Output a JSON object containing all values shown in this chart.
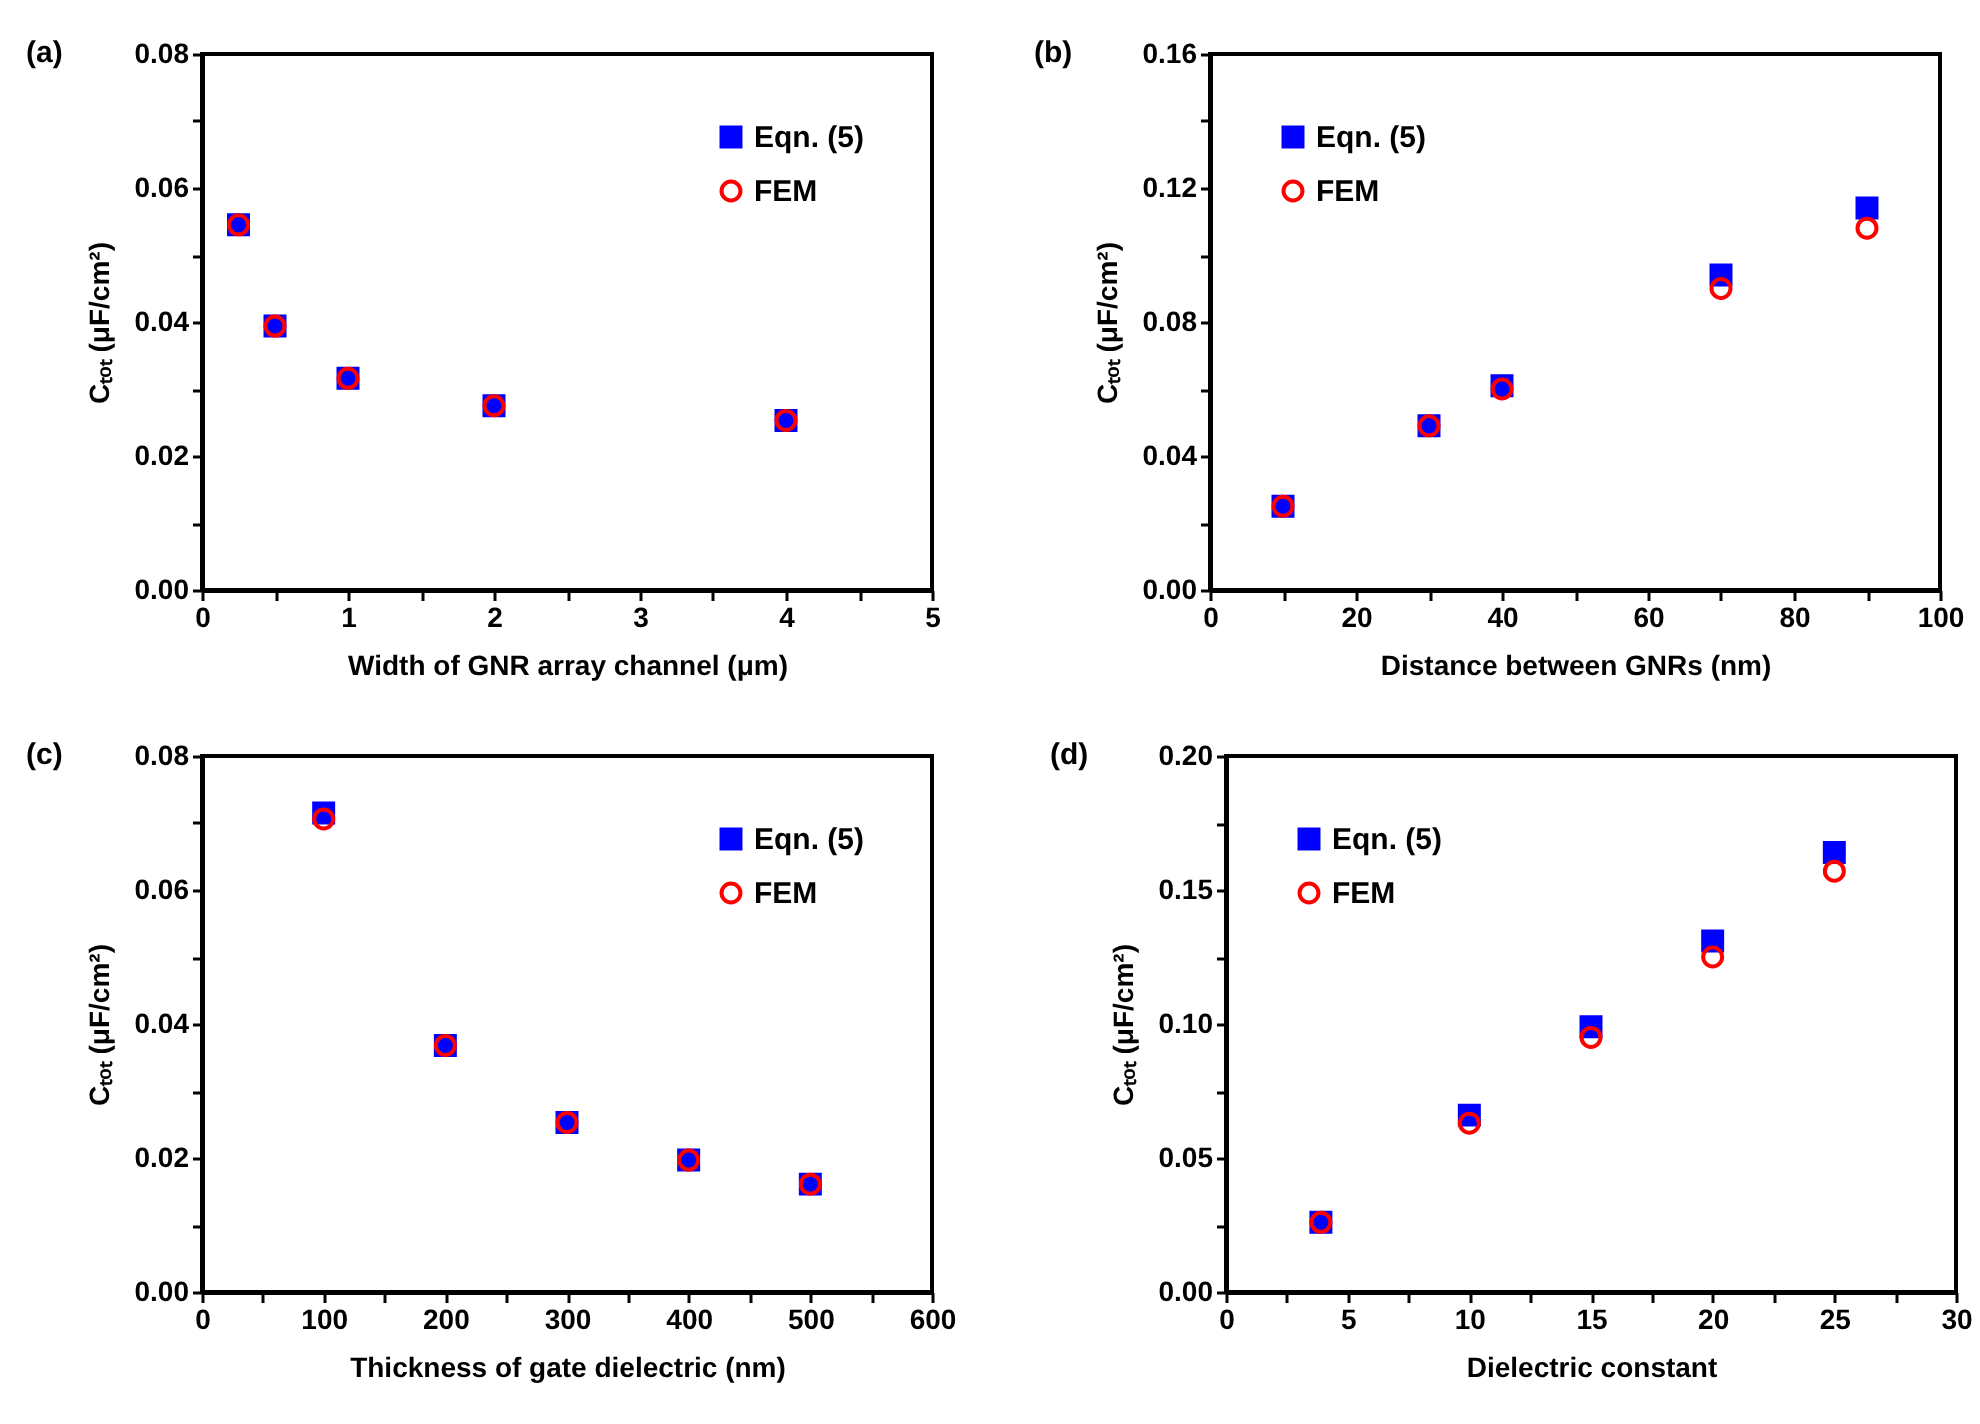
{
  "chart_data": [
    {
      "type": "scatter",
      "title": "(a)",
      "xlabel": "Width of GNR array channel (μm)",
      "ylabel": "Cₜₒₜ (μF/cm²)",
      "x": [
        0.25,
        0.5,
        1,
        2,
        4
      ],
      "xlim": [
        0,
        5
      ],
      "ylim": [
        0,
        0.08
      ],
      "xticks": [
        0,
        {
          "value": 0.5,
          "label": null
        },
        1,
        {
          "value": 1.5,
          "label": null
        },
        2,
        {
          "value": 2.5,
          "label": null
        },
        3,
        {
          "value": 3.5,
          "label": null
        },
        4,
        {
          "value": 4.5,
          "label": null
        },
        5
      ],
      "yticks": [
        {
          "value": 0,
          "label": "0.00"
        },
        {
          "value": 0.01,
          "label": null
        },
        {
          "value": 0.02,
          "label": "0.02"
        },
        {
          "value": 0.03,
          "label": null
        },
        {
          "value": 0.04,
          "label": "0.04"
        },
        {
          "value": 0.05,
          "label": null
        },
        {
          "value": 0.06,
          "label": "0.06"
        },
        {
          "value": 0.07,
          "label": null
        },
        {
          "value": 0.08,
          "label": "0.08"
        }
      ],
      "legend": "top right",
      "series": [
        {
          "name": "Eqn. (5)",
          "color": "#0000ff",
          "marker": "square",
          "values": [
            0.0545,
            0.0394,
            0.0316,
            0.0275,
            0.0253
          ]
        },
        {
          "name": "FEM",
          "color": "#ff0000",
          "marker": "circle",
          "values": [
            0.0545,
            0.0394,
            0.0316,
            0.0275,
            0.0253
          ]
        }
      ]
    },
    {
      "type": "scatter",
      "title": "(b)",
      "xlabel": "Distance between GNRs (nm)",
      "ylabel": "Cₜₒₜ (μF/cm²)",
      "x": [
        10,
        30,
        40,
        70,
        90
      ],
      "xlim": [
        0,
        100
      ],
      "ylim": [
        0,
        0.16
      ],
      "xticks": [
        0,
        {
          "value": 10,
          "label": null
        },
        20,
        {
          "value": 30,
          "label": null
        },
        40,
        {
          "value": 50,
          "label": null
        },
        60,
        {
          "value": 70,
          "label": null
        },
        80,
        {
          "value": 90,
          "label": null
        },
        100
      ],
      "yticks": [
        {
          "value": 0,
          "label": "0.00"
        },
        {
          "value": 0.02,
          "label": null
        },
        {
          "value": 0.04,
          "label": "0.04"
        },
        {
          "value": 0.06,
          "label": null
        },
        {
          "value": 0.08,
          "label": "0.08"
        },
        {
          "value": 0.1,
          "label": null
        },
        {
          "value": 0.12,
          "label": "0.12"
        },
        {
          "value": 0.14,
          "label": null
        },
        {
          "value": 0.16,
          "label": "0.16"
        }
      ],
      "legend": "top left",
      "series": [
        {
          "name": "Eqn. (5)",
          "color": "#0000ff",
          "marker": "square",
          "values": [
            0.025,
            0.049,
            0.061,
            0.094,
            0.114
          ]
        },
        {
          "name": "FEM",
          "color": "#ff0000",
          "marker": "circle",
          "values": [
            0.025,
            0.049,
            0.06,
            0.09,
            0.108
          ]
        }
      ]
    },
    {
      "type": "scatter",
      "title": "(c)",
      "xlabel": "Thickness of gate dielectric (nm)",
      "ylabel": "Cₜₒₜ (μF/cm²)",
      "x": [
        100,
        200,
        300,
        400,
        500
      ],
      "xlim": [
        0,
        600
      ],
      "ylim": [
        0,
        0.08
      ],
      "xticks": [
        0,
        {
          "value": 50,
          "label": null
        },
        100,
        {
          "value": 150,
          "label": null
        },
        200,
        {
          "value": 250,
          "label": null
        },
        300,
        {
          "value": 350,
          "label": null
        },
        400,
        {
          "value": 450,
          "label": null
        },
        500,
        {
          "value": 550,
          "label": null
        },
        600
      ],
      "yticks": [
        {
          "value": 0,
          "label": "0.00"
        },
        {
          "value": 0.01,
          "label": null
        },
        {
          "value": 0.02,
          "label": "0.02"
        },
        {
          "value": 0.03,
          "label": null
        },
        {
          "value": 0.04,
          "label": "0.04"
        },
        {
          "value": 0.05,
          "label": null
        },
        {
          "value": 0.06,
          "label": "0.06"
        },
        {
          "value": 0.07,
          "label": null
        },
        {
          "value": 0.08,
          "label": "0.08"
        }
      ],
      "legend": "top right",
      "series": [
        {
          "name": "Eqn. (5)",
          "color": "#0000ff",
          "marker": "square",
          "values": [
            0.0715,
            0.0368,
            0.0253,
            0.0197,
            0.0161
          ]
        },
        {
          "name": "FEM",
          "color": "#ff0000",
          "marker": "circle",
          "values": [
            0.0706,
            0.0368,
            0.0253,
            0.0197,
            0.0161
          ]
        }
      ]
    },
    {
      "type": "scatter",
      "title": "(d)",
      "xlabel": "Dielectric constant",
      "ylabel": "Cₜₒₜ (μF/cm²)",
      "x": [
        3.9,
        10,
        15,
        20,
        25
      ],
      "xlim": [
        0,
        30
      ],
      "ylim": [
        0,
        0.2
      ],
      "xticks": [
        0,
        {
          "value": 2.5,
          "label": null
        },
        5,
        {
          "value": 7.5,
          "label": null
        },
        10,
        {
          "value": 12.5,
          "label": null
        },
        15,
        {
          "value": 17.5,
          "label": null
        },
        20,
        {
          "value": 22.5,
          "label": null
        },
        25,
        {
          "value": 27.5,
          "label": null
        },
        30
      ],
      "yticks": [
        {
          "value": 0,
          "label": "0.00"
        },
        {
          "value": 0.025,
          "label": null
        },
        {
          "value": 0.05,
          "label": "0.05"
        },
        {
          "value": 0.075,
          "label": null
        },
        {
          "value": 0.1,
          "label": "0.10"
        },
        {
          "value": 0.125,
          "label": null
        },
        {
          "value": 0.15,
          "label": "0.15"
        },
        {
          "value": 0.175,
          "label": null
        },
        {
          "value": 0.2,
          "label": "0.20"
        }
      ],
      "legend": "top left",
      "series": [
        {
          "name": "Eqn. (5)",
          "color": "#0000ff",
          "marker": "square",
          "values": [
            0.026,
            0.066,
            0.099,
            0.131,
            0.164
          ]
        },
        {
          "name": "FEM",
          "color": "#ff0000",
          "marker": "circle",
          "values": [
            0.026,
            0.063,
            0.095,
            0.125,
            0.157
          ]
        }
      ]
    }
  ]
}
